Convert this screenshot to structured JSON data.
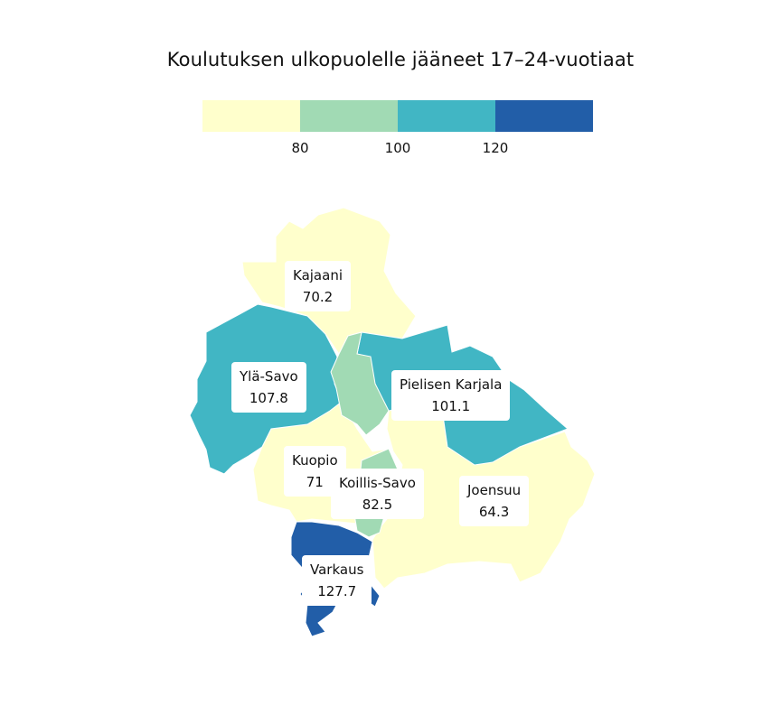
{
  "title": "Koulutuksen ulkopuolelle jääneet 17–24-vuotiaat",
  "legend": {
    "colors": [
      "#ffffcc",
      "#a1dab4",
      "#41b6c4",
      "#225ea8"
    ],
    "ticks": [
      "80",
      "100",
      "120"
    ]
  },
  "regions": [
    {
      "name": "Kajaani",
      "value": "70.2",
      "color": "#ffffcc"
    },
    {
      "name": "Ylä-Savo",
      "value": "107.8",
      "color": "#41b6c4"
    },
    {
      "name": "Pielisen Karjala",
      "value": "101.1",
      "color": "#41b6c4"
    },
    {
      "name": "Kuopio",
      "value": "71",
      "color": "#ffffcc"
    },
    {
      "name": "Koillis-Savo",
      "value": "82.5",
      "color": "#a1dab4"
    },
    {
      "name": "Joensuu",
      "value": "64.3",
      "color": "#ffffcc"
    },
    {
      "name": "Varkaus",
      "value": "127.7",
      "color": "#225ea8"
    }
  ]
}
